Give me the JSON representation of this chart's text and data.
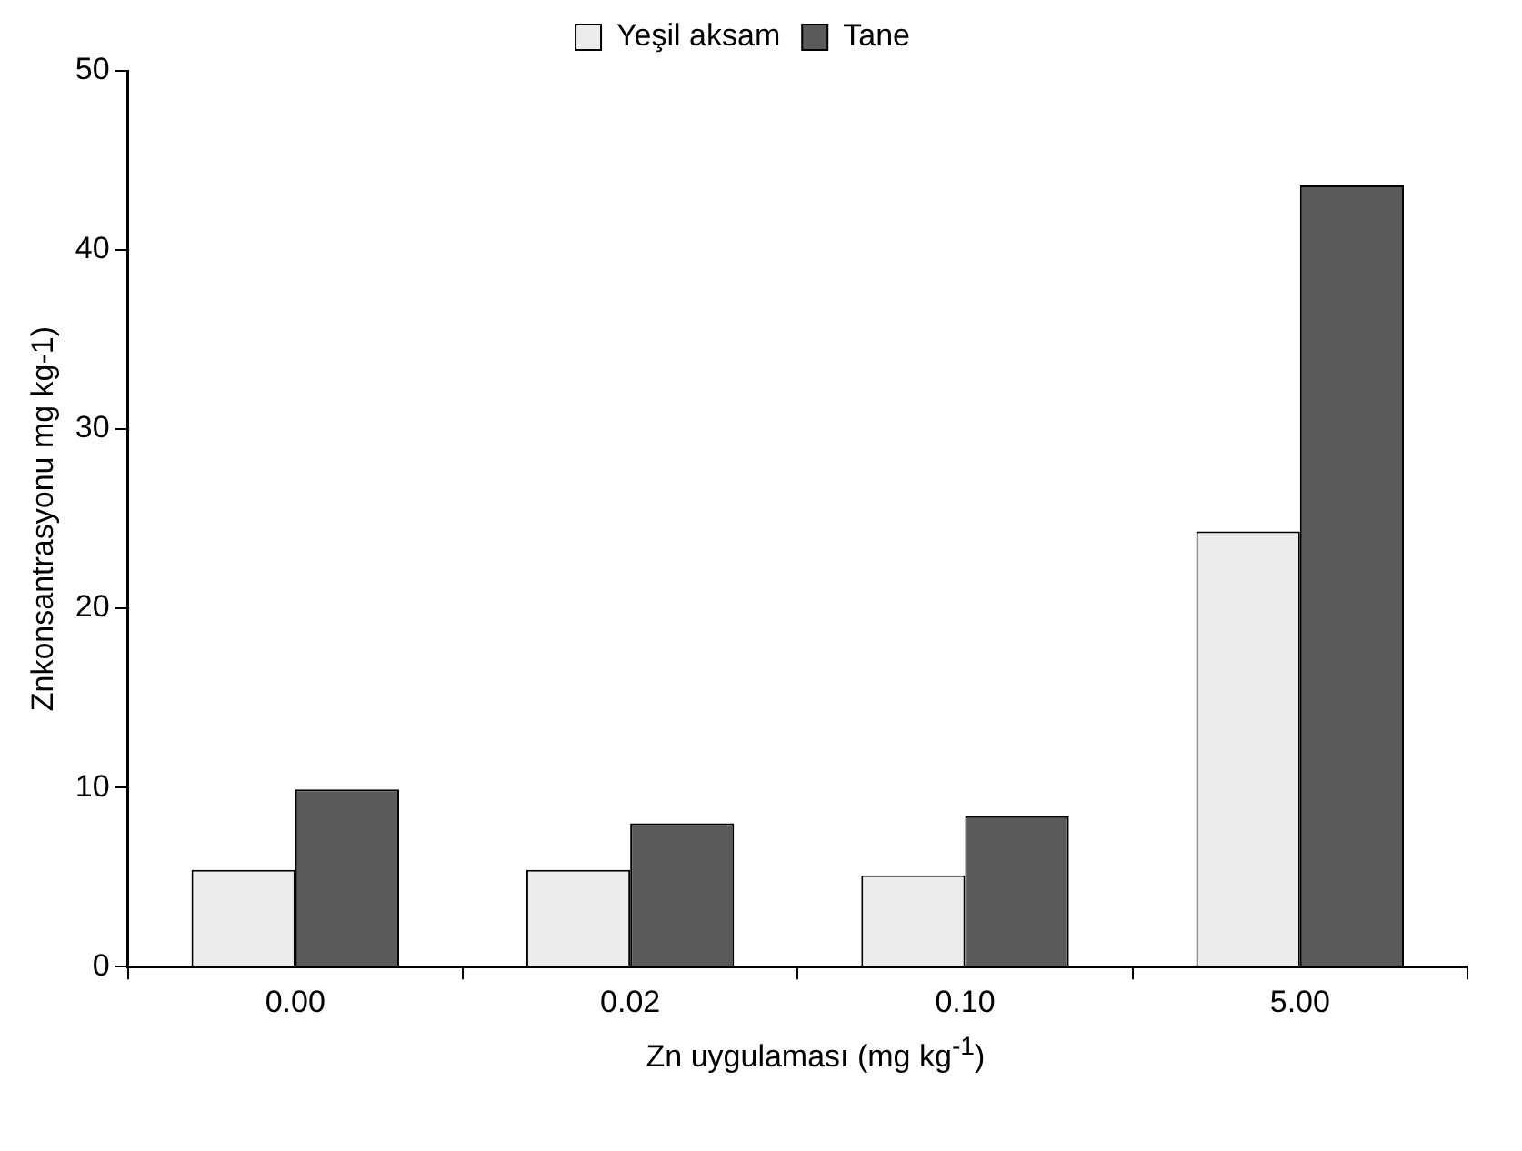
{
  "chart_data": {
    "type": "bar",
    "xlabel": "Zn uygulaması (mg kg$^{-1}$)",
    "ylabel": "Znkonsantrasyonu mg kg-1)",
    "categories": [
      "0.00",
      "0.02",
      "0.10",
      "5.00"
    ],
    "series": [
      {
        "name": "Yeşil aksam",
        "color": "#ececec",
        "values": [
          5.4,
          5.4,
          5.1,
          24.3
        ]
      },
      {
        "name": "Tane",
        "color": "#5a5a5a",
        "values": [
          9.9,
          8.0,
          8.4,
          43.6
        ]
      }
    ],
    "ylim": [
      0,
      50
    ],
    "yticks": [
      0,
      10,
      20,
      30,
      40,
      50
    ],
    "grid": false,
    "legend": "top"
  }
}
